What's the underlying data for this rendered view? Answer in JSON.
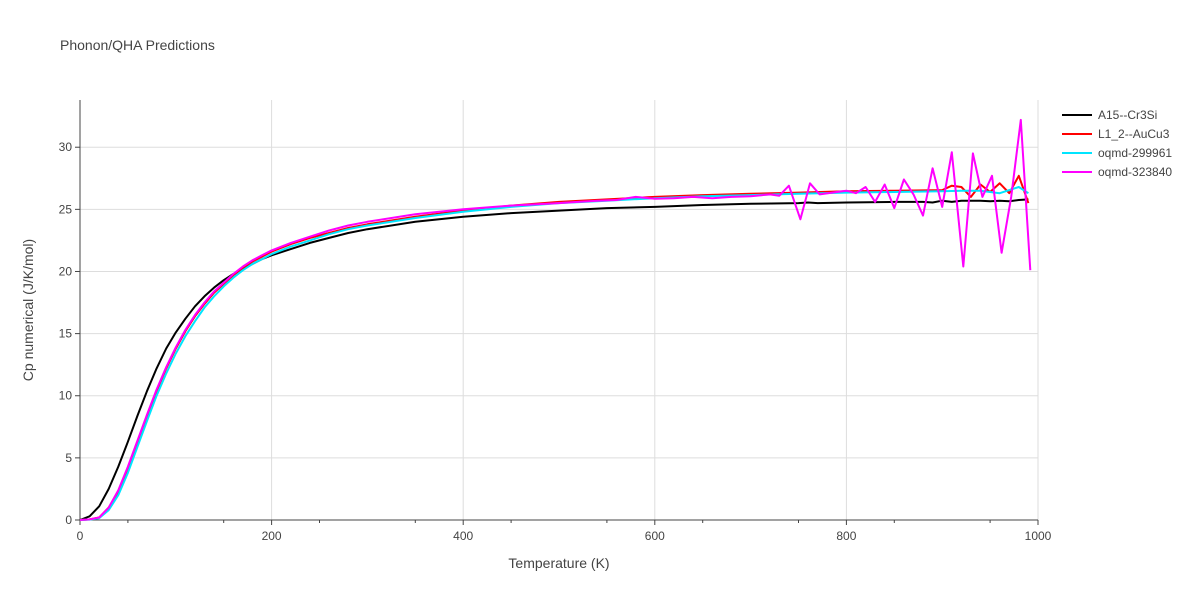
{
  "chart_data": {
    "type": "line",
    "title": "Phonon/QHA Predictions",
    "xlabel": "Temperature (K)",
    "ylabel": "Cp numerical (J/K/mol)",
    "xlim": [
      0,
      1000
    ],
    "ylim": [
      0,
      33.8
    ],
    "xticks": [
      0,
      200,
      400,
      600,
      800,
      1000
    ],
    "yticks": [
      0,
      5,
      10,
      15,
      20,
      25,
      30
    ],
    "grid": true,
    "legend_position": "top-right",
    "series": [
      {
        "name": "A15--Cr3Si",
        "color": "#000000",
        "x": [
          0,
          10,
          20,
          30,
          40,
          50,
          60,
          70,
          80,
          90,
          100,
          110,
          120,
          130,
          140,
          150,
          160,
          170,
          180,
          190,
          200,
          220,
          240,
          260,
          280,
          300,
          350,
          400,
          450,
          500,
          550,
          600,
          650,
          700,
          750,
          760,
          770,
          800,
          850,
          880,
          890,
          900,
          910,
          920,
          940,
          950,
          960,
          970,
          980,
          990
        ],
        "y": [
          0,
          0.3,
          1.1,
          2.5,
          4.3,
          6.3,
          8.4,
          10.4,
          12.2,
          13.8,
          15.1,
          16.2,
          17.2,
          18.0,
          18.7,
          19.3,
          19.8,
          20.2,
          20.6,
          21.0,
          21.3,
          21.8,
          22.3,
          22.7,
          23.1,
          23.4,
          24.0,
          24.4,
          24.7,
          24.9,
          25.1,
          25.2,
          25.35,
          25.45,
          25.5,
          25.55,
          25.5,
          25.55,
          25.6,
          25.6,
          25.55,
          25.7,
          25.6,
          25.7,
          25.7,
          25.65,
          25.7,
          25.65,
          25.75,
          25.8
        ]
      },
      {
        "name": "L1_2--AuCu3",
        "color": "#ff0000",
        "x": [
          0,
          10,
          20,
          30,
          40,
          50,
          60,
          70,
          80,
          90,
          100,
          110,
          120,
          130,
          140,
          150,
          160,
          170,
          180,
          190,
          200,
          220,
          240,
          260,
          280,
          300,
          350,
          400,
          450,
          500,
          550,
          600,
          650,
          700,
          750,
          800,
          850,
          900,
          910,
          920,
          930,
          940,
          950,
          960,
          970,
          980,
          990
        ],
        "y": [
          0,
          0.05,
          0.2,
          1.0,
          2.3,
          4.2,
          6.3,
          8.4,
          10.4,
          12.2,
          13.8,
          15.2,
          16.4,
          17.4,
          18.3,
          19.0,
          19.7,
          20.3,
          20.8,
          21.2,
          21.6,
          22.2,
          22.7,
          23.1,
          23.5,
          23.8,
          24.4,
          24.9,
          25.3,
          25.6,
          25.8,
          26.0,
          26.15,
          26.25,
          26.35,
          26.45,
          26.5,
          26.55,
          26.9,
          26.8,
          26.0,
          27.0,
          26.4,
          27.1,
          26.3,
          27.7,
          25.5
        ]
      },
      {
        "name": "oqmd-299961",
        "color": "#00e5ff",
        "x": [
          0,
          10,
          20,
          30,
          40,
          50,
          60,
          70,
          80,
          90,
          100,
          110,
          120,
          130,
          140,
          150,
          160,
          170,
          180,
          190,
          200,
          220,
          240,
          260,
          280,
          300,
          350,
          400,
          450,
          500,
          550,
          600,
          650,
          700,
          750,
          800,
          850,
          900,
          920,
          940,
          960,
          980,
          990
        ],
        "y": [
          0,
          0.03,
          0.15,
          0.8,
          2.0,
          3.8,
          5.9,
          8.0,
          10.0,
          11.8,
          13.4,
          14.8,
          16.0,
          17.1,
          18.0,
          18.8,
          19.5,
          20.1,
          20.6,
          21.0,
          21.4,
          22.0,
          22.5,
          23.0,
          23.4,
          23.7,
          24.3,
          24.8,
          25.2,
          25.5,
          25.7,
          25.9,
          26.05,
          26.15,
          26.25,
          26.35,
          26.4,
          26.45,
          26.5,
          26.5,
          26.3,
          26.8,
          26.3
        ]
      },
      {
        "name": "oqmd-323840",
        "color": "#ff00ff",
        "x": [
          0,
          10,
          20,
          30,
          40,
          50,
          60,
          70,
          80,
          90,
          100,
          110,
          120,
          130,
          140,
          150,
          160,
          170,
          180,
          190,
          200,
          220,
          240,
          260,
          280,
          300,
          350,
          400,
          450,
          500,
          520,
          540,
          560,
          580,
          600,
          620,
          640,
          660,
          680,
          700,
          720,
          730,
          740,
          752,
          762,
          772,
          790,
          800,
          810,
          820,
          830,
          840,
          850,
          860,
          870,
          880,
          890,
          900,
          910,
          922,
          932,
          942,
          952,
          962,
          972,
          982,
          992
        ],
        "y": [
          0,
          0.05,
          0.2,
          1.0,
          2.4,
          4.3,
          6.4,
          8.5,
          10.5,
          12.3,
          13.9,
          15.3,
          16.5,
          17.5,
          18.4,
          19.1,
          19.8,
          20.4,
          20.9,
          21.3,
          21.7,
          22.3,
          22.8,
          23.3,
          23.7,
          24.0,
          24.6,
          25.0,
          25.3,
          25.5,
          25.6,
          25.7,
          25.75,
          26.0,
          25.85,
          25.9,
          26.0,
          25.9,
          26.0,
          26.05,
          26.2,
          26.1,
          26.9,
          24.2,
          27.1,
          26.2,
          26.4,
          26.5,
          26.3,
          26.8,
          25.6,
          27.0,
          25.1,
          27.4,
          26.2,
          24.5,
          28.3,
          25.2,
          29.6,
          20.4,
          29.5,
          26.0,
          27.7,
          21.5,
          26.0,
          32.2,
          20.1
        ]
      }
    ]
  }
}
